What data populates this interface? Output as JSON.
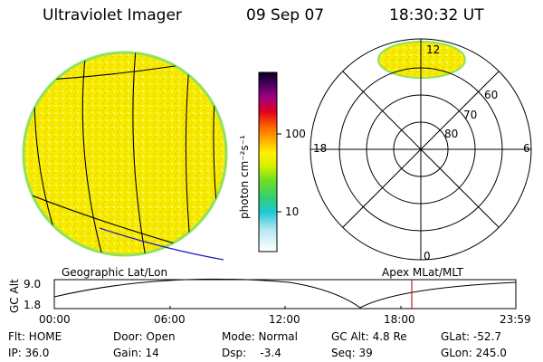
{
  "header": {
    "instrument": "Ultraviolet Imager",
    "date": "09 Sep 07",
    "time": "18:30:32 UT"
  },
  "colorbar": {
    "unit_label": "photon cm⁻²s⁻¹",
    "ticks": [
      "100",
      "10"
    ]
  },
  "polar_plot": {
    "mlt_labels": {
      "top": "12",
      "left": "18",
      "right": "6",
      "bottom": "0"
    },
    "lat_labels": [
      "60",
      "70",
      "80"
    ]
  },
  "panel_labels": {
    "left": "Geographic Lat/Lon",
    "right": "Apex MLat/MLT"
  },
  "altitude_plot": {
    "axis_title": "GC Alt",
    "y_max": "9.0",
    "y_min": "1.8",
    "time_ticks": [
      "00:00",
      "06:00",
      "12:00",
      "18:00",
      "23:59"
    ]
  },
  "status": {
    "filter": "Flt: HOME",
    "ip": "IP: 36.0",
    "door": "Door: Open",
    "gain": "Gain: 14",
    "mode": "Mode: Normal",
    "dsp": "Dsp:    -3.4",
    "gc_alt": "GC Alt: 4.8 Re",
    "seq": "Seq: 39",
    "glat": "GLat: -52.7",
    "glon": "GLon: 245.0"
  },
  "colors": {
    "image_fill": "#f7ef00",
    "image_edge": "#8fe25a",
    "marker": "#c02020",
    "track_blue": "#2020c0"
  }
}
